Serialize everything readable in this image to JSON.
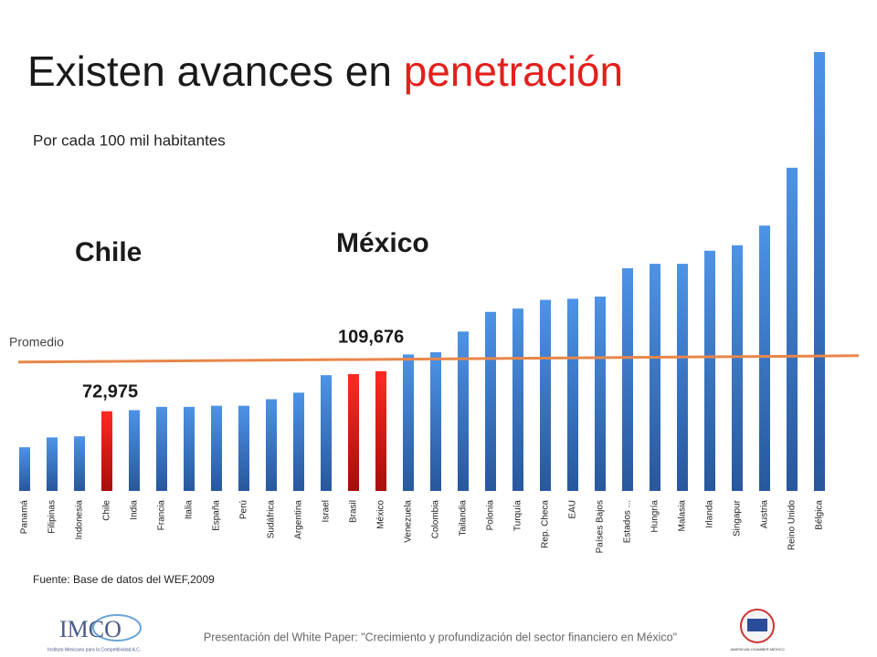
{
  "chart_data": {
    "type": "bar",
    "title_parts": [
      "Existen avances en ",
      "penetración"
    ],
    "subtitle": "Por cada 100 mil habitantes",
    "categories": [
      "Panamá",
      "Filipinas",
      "Indonesia",
      "Chile",
      "India",
      "Francia",
      "Italia",
      "España",
      "Perú",
      "Sudáfrica",
      "Argentina",
      "Israel",
      "Brasil",
      "México",
      "Venezuela",
      "Colombia",
      "Tailandia",
      "Polonia",
      "Turquía",
      "Rep. Checa",
      "EAU",
      "Países Bajos",
      "Estados ...",
      "Hungría",
      "Malasia",
      "Irlanda",
      "Singapur",
      "Austria",
      "Reino Unido",
      "Bélgica"
    ],
    "values": [
      40000,
      49000,
      50000,
      72975,
      74000,
      77000,
      77000,
      78000,
      78000,
      84000,
      90000,
      106000,
      107000,
      109676,
      125000,
      127000,
      146000,
      164000,
      167000,
      175000,
      176000,
      178000,
      204000,
      208000,
      208000,
      220000,
      225000,
      243000,
      296000,
      402000
    ],
    "value_labels": [
      null,
      null,
      null,
      "72,975",
      null,
      null,
      null,
      null,
      null,
      null,
      null,
      null,
      null,
      "109,676",
      null,
      null,
      null,
      null,
      null,
      null,
      null,
      null,
      null,
      null,
      null,
      null,
      null,
      null,
      null,
      null
    ],
    "color": "#3b7ad0",
    "highlight_color": "#e3201c",
    "highlight_indices": [
      3,
      12,
      13
    ],
    "average": {
      "label": "Promedio",
      "value": 118000,
      "color": "#e8874a"
    },
    "annotations": [
      "Chile",
      "México"
    ],
    "source": "Fuente: Base de datos del WEF,2009"
  },
  "footer": {
    "text": "Presentación del White Paper: \"Crecimiento y profundización del sector financiero en México\"",
    "left_logo": "IMCO",
    "left_logo_tagline": "Instituto Mexicano para la Competitividad A.C.",
    "right_logo": "AMERICAN CHAMBER MÉXICO"
  }
}
